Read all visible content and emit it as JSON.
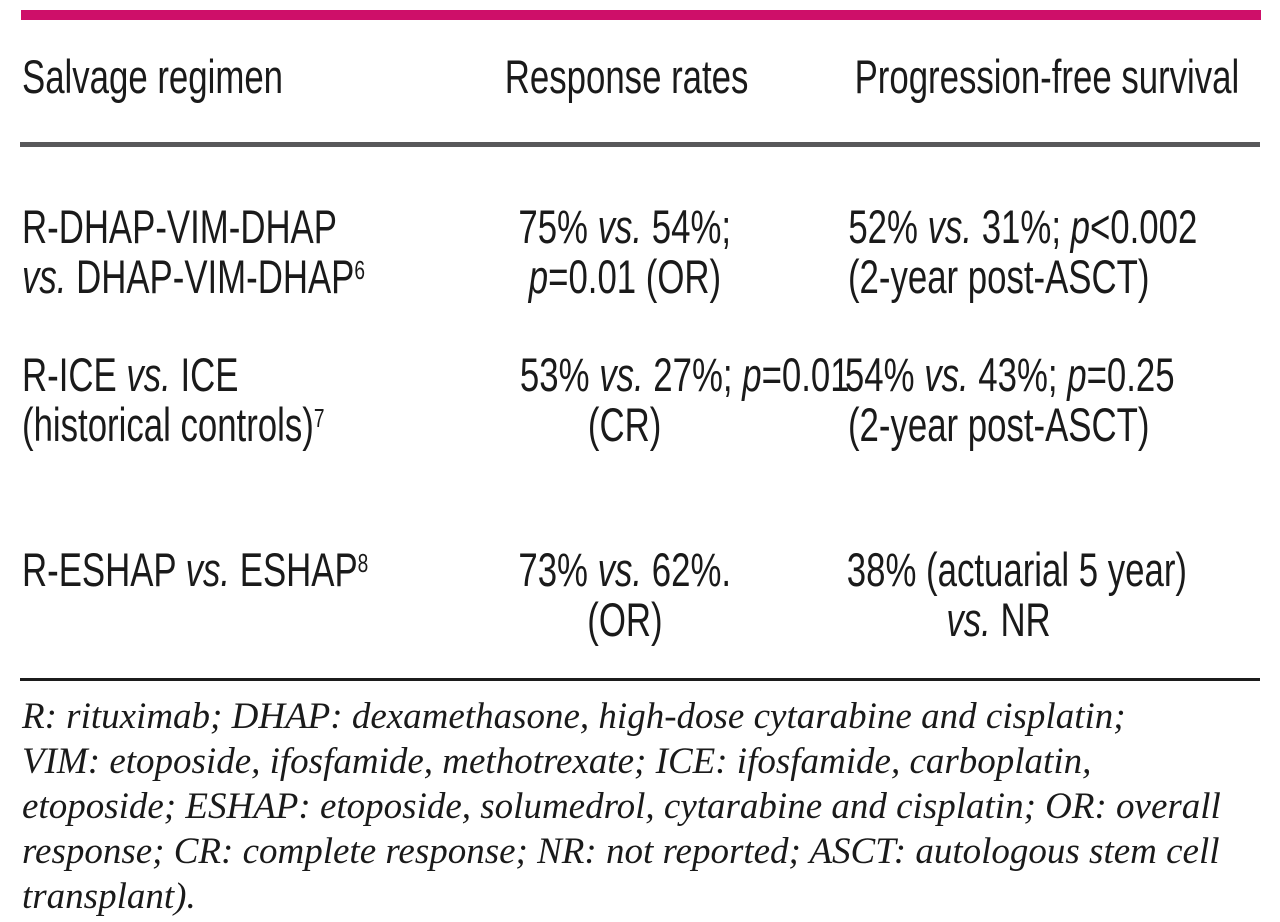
{
  "colors": {
    "accent": "#CE0F69",
    "rule-gray": "#58585a",
    "rule-black": "#1c1c1c",
    "text": "#1a1a1a"
  },
  "table": {
    "headers": [
      "Salvage regimen",
      "Response rates",
      "Progression-free survival"
    ],
    "rows": [
      {
        "cells": [
          {
            "lines": [
              [
                {
                  "t": "R-DHAP-VIM-DHAP"
                }
              ],
              [
                {
                  "t": "vs.",
                  "i": true
                },
                {
                  "t": " DHAP-VIM-DHAP"
                },
                {
                  "t": "6",
                  "sup": true
                }
              ]
            ]
          },
          {
            "lines": [
              [
                {
                  "t": "75% "
                },
                {
                  "t": "vs.",
                  "i": true
                },
                {
                  "t": " 54%;"
                }
              ],
              [
                {
                  "t": "p",
                  "i": true
                },
                {
                  "t": "=0.01 (OR)"
                }
              ]
            ]
          },
          {
            "lines": [
              [
                {
                  "t": "52% "
                },
                {
                  "t": "vs.",
                  "i": true
                },
                {
                  "t": " 31%; "
                },
                {
                  "t": "p",
                  "i": true
                },
                {
                  "t": "<0.002"
                }
              ],
              [
                {
                  "t": "(2-year post-ASCT)"
                }
              ]
            ]
          }
        ]
      },
      {
        "cells": [
          {
            "lines": [
              [
                {
                  "t": "R-ICE "
                },
                {
                  "t": "vs.",
                  "i": true
                },
                {
                  "t": " ICE"
                }
              ],
              [
                {
                  "t": "(historical controls)"
                },
                {
                  "t": "7",
                  "sup": true
                }
              ]
            ]
          },
          {
            "lines": [
              [
                {
                  "t": "53% "
                },
                {
                  "t": "vs.",
                  "i": true
                },
                {
                  "t": " 27%; "
                },
                {
                  "t": "p",
                  "i": true
                },
                {
                  "t": "=0.01"
                }
              ],
              [
                {
                  "t": "(CR)"
                }
              ]
            ]
          },
          {
            "lines": [
              [
                {
                  "t": "54% "
                },
                {
                  "t": "vs.",
                  "i": true
                },
                {
                  "t": " 43%; "
                },
                {
                  "t": "p",
                  "i": true
                },
                {
                  "t": "=0.25"
                }
              ],
              [
                {
                  "t": "(2-year post-ASCT)"
                }
              ]
            ]
          }
        ]
      },
      {
        "cells": [
          {
            "lines": [
              [
                {
                  "t": "R-ESHAP "
                },
                {
                  "t": "vs.",
                  "i": true
                },
                {
                  "t": " ESHAP"
                },
                {
                  "t": "8",
                  "sup": true
                }
              ]
            ]
          },
          {
            "lines": [
              [
                {
                  "t": "73% "
                },
                {
                  "t": "vs.",
                  "i": true
                },
                {
                  "t": " 62%."
                }
              ],
              [
                {
                  "t": "(OR)"
                }
              ]
            ]
          },
          {
            "lines": [
              [
                {
                  "t": "38% (actuarial 5 year)"
                }
              ],
              [
                {
                  "t": "vs.",
                  "i": true
                },
                {
                  "t": " NR"
                }
              ]
            ]
          }
        ]
      }
    ]
  },
  "footnote": {
    "lines": [
      "R: rituximab; DHAP: dexamethasone, high-dose cytarabine and cisplatin;",
      "VIM: etoposide, ifosfamide, methotrexate; ICE: ifosfamide, carboplatin,",
      "etoposide; ESHAP: etoposide, solumedrol, cytarabine and cisplatin; OR: overall",
      "response; CR: complete response; NR: not reported; ASCT: autologous stem cell",
      "transplant)."
    ]
  }
}
